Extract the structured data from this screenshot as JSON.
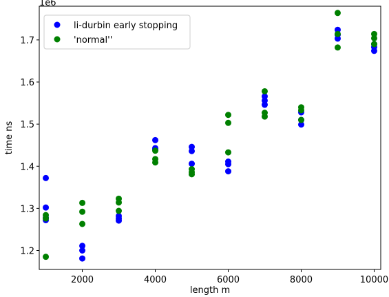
{
  "chart_data": {
    "type": "scatter",
    "xlabel": "length m",
    "ylabel": "time ns",
    "y_offset_text": "1e6",
    "xlim": [
      820,
      10180
    ],
    "ylim": [
      1155000,
      1780000
    ],
    "x_ticks": [
      2000,
      4000,
      6000,
      8000,
      10000
    ],
    "x_tick_labels": [
      "2000",
      "4000",
      "6000",
      "8000",
      "10000"
    ],
    "y_ticks": [
      1200000,
      1300000,
      1400000,
      1500000,
      1600000,
      1700000
    ],
    "y_tick_labels": [
      "1.2",
      "1.3",
      "1.4",
      "1.5",
      "1.6",
      "1.7"
    ],
    "grid": false,
    "legend_position": "top-left",
    "series": [
      {
        "name": "li-durbin early stopping",
        "color": "#0000ff",
        "points": [
          [
            1000,
            1372000
          ],
          [
            1000,
            1302000
          ],
          [
            1000,
            1278000
          ],
          [
            1000,
            1272000
          ],
          [
            2000,
            1211000
          ],
          [
            2000,
            1200000
          ],
          [
            2000,
            1181000
          ],
          [
            3000,
            1282000
          ],
          [
            3000,
            1276000
          ],
          [
            3000,
            1271000
          ],
          [
            4000,
            1462000
          ],
          [
            4000,
            1443000
          ],
          [
            4000,
            1440000
          ],
          [
            5000,
            1446000
          ],
          [
            5000,
            1436000
          ],
          [
            5000,
            1406000
          ],
          [
            6000,
            1411000
          ],
          [
            6000,
            1405000
          ],
          [
            6000,
            1388000
          ],
          [
            7000,
            1566000
          ],
          [
            7000,
            1556000
          ],
          [
            7000,
            1546000
          ],
          [
            8000,
            1528000
          ],
          [
            8000,
            1510000
          ],
          [
            8000,
            1499000
          ],
          [
            9000,
            1724000
          ],
          [
            9000,
            1712000
          ],
          [
            9000,
            1703000
          ],
          [
            10000,
            1690000
          ],
          [
            10000,
            1683000
          ],
          [
            10000,
            1674000
          ]
        ]
      },
      {
        "name": "'normal''",
        "color": "#008000",
        "points": [
          [
            1000,
            1284000
          ],
          [
            1000,
            1276000
          ],
          [
            1000,
            1185000
          ],
          [
            2000,
            1313000
          ],
          [
            2000,
            1292000
          ],
          [
            2000,
            1263000
          ],
          [
            3000,
            1323000
          ],
          [
            3000,
            1314000
          ],
          [
            3000,
            1294000
          ],
          [
            4000,
            1437000
          ],
          [
            4000,
            1417000
          ],
          [
            4000,
            1409000
          ],
          [
            5000,
            1393000
          ],
          [
            5000,
            1386000
          ],
          [
            5000,
            1381000
          ],
          [
            6000,
            1522000
          ],
          [
            6000,
            1503000
          ],
          [
            6000,
            1433000
          ],
          [
            7000,
            1578000
          ],
          [
            7000,
            1527000
          ],
          [
            7000,
            1518000
          ],
          [
            8000,
            1540000
          ],
          [
            8000,
            1533000
          ],
          [
            8000,
            1510000
          ],
          [
            9000,
            1764000
          ],
          [
            9000,
            1714000
          ],
          [
            9000,
            1682000
          ],
          [
            10000,
            1714000
          ],
          [
            10000,
            1704000
          ],
          [
            10000,
            1690000
          ]
        ]
      }
    ]
  }
}
